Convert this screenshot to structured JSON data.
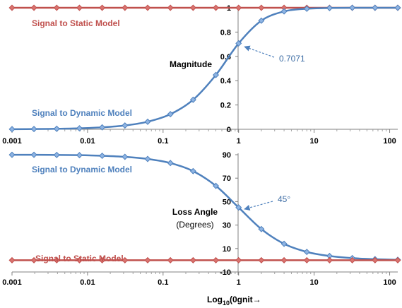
{
  "chart_data": [
    {
      "type": "line",
      "title": "",
      "x_scale": "log",
      "xlim": [
        0.001,
        128
      ],
      "ylim": [
        0,
        1
      ],
      "y_ticks": [
        "0",
        "0.2",
        "0.4",
        "0.6",
        "0.8",
        "1"
      ],
      "x_ticks": [
        "0.001",
        "0.01",
        "0.1",
        "1",
        "10",
        "100"
      ],
      "inner_label": "Magnitude",
      "annotation": {
        "text": "0.7071",
        "x": 1,
        "y": 0.7071
      },
      "series": [
        {
          "name": "Signal to Static Model",
          "color": "#c0504d",
          "x": [
            0.001,
            0.001953125,
            0.00390625,
            0.0078125,
            0.015625,
            0.03125,
            0.0625,
            0.125,
            0.25,
            0.5,
            1,
            2,
            4,
            8,
            16,
            32,
            64,
            128
          ],
          "y": [
            1,
            1,
            1,
            1,
            1,
            1,
            1,
            1,
            1,
            1,
            1,
            1,
            1,
            1,
            1,
            1,
            1,
            1
          ]
        },
        {
          "name": "Signal to Dynamic Model",
          "color": "#4f81bd",
          "x": [
            0.001,
            0.001953125,
            0.00390625,
            0.0078125,
            0.015625,
            0.03125,
            0.0625,
            0.125,
            0.25,
            0.5,
            1,
            2,
            4,
            8,
            16,
            32,
            64,
            128
          ],
          "y": [
            0.001,
            0.002,
            0.004,
            0.008,
            0.016,
            0.031,
            0.062,
            0.124,
            0.243,
            0.447,
            0.707,
            0.894,
            0.97,
            0.992,
            0.998,
            1.0,
            1.0,
            1.0
          ]
        }
      ]
    },
    {
      "type": "line",
      "title": "",
      "x_scale": "log",
      "xlim": [
        0.001,
        128
      ],
      "ylim": [
        -10,
        90
      ],
      "y_ticks": [
        "-10",
        "10",
        "30",
        "50",
        "70",
        "90"
      ],
      "x_ticks": [
        "0.001",
        "0.01",
        "0.1",
        "1",
        "10",
        "100"
      ],
      "inner_label": "Loss Angle",
      "inner_sublabel": "(Degrees)",
      "xlabel_parts": [
        "Log",
        "10",
        "(0gnit→"
      ],
      "annotation": {
        "text": "45°",
        "x": 1,
        "y": 45
      },
      "series": [
        {
          "name": "Signal to Dynamic Model",
          "color": "#4f81bd",
          "x": [
            0.001,
            0.001953125,
            0.00390625,
            0.0078125,
            0.015625,
            0.03125,
            0.0625,
            0.125,
            0.25,
            0.5,
            1,
            2,
            4,
            8,
            16,
            32,
            64,
            128
          ],
          "y": [
            89.9,
            89.9,
            89.8,
            89.6,
            89.1,
            88.2,
            86.4,
            82.9,
            76.0,
            63.4,
            45.0,
            26.6,
            14.0,
            7.1,
            3.6,
            1.8,
            0.9,
            0.4
          ]
        },
        {
          "name": "Signal to Static Model",
          "color": "#c0504d",
          "x": [
            0.001,
            0.001953125,
            0.00390625,
            0.0078125,
            0.015625,
            0.03125,
            0.0625,
            0.125,
            0.25,
            0.5,
            1,
            2,
            4,
            8,
            16,
            32,
            64,
            128
          ],
          "y": [
            0,
            0,
            0,
            0,
            0,
            0,
            0,
            0,
            0,
            0,
            0,
            0,
            0,
            0,
            0,
            0,
            0,
            0
          ]
        }
      ]
    }
  ]
}
